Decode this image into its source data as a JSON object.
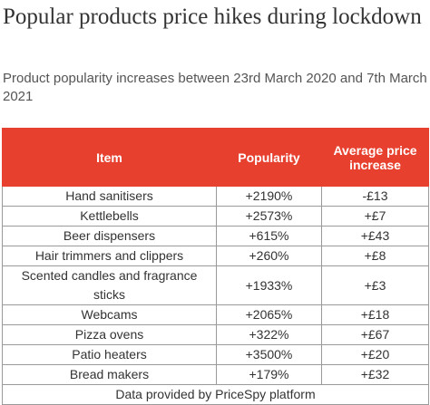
{
  "title": "Popular products price hikes during lockdown",
  "subtitle": "Product popularity increases between 23rd March 2020 and 7th March 2021",
  "colors": {
    "header_bg": "#e8402f",
    "header_text": "#ffffff",
    "border": "#9a9a9a"
  },
  "chart_data": {
    "type": "table",
    "columns": [
      "Item",
      "Popularity",
      "Average price increase"
    ],
    "rows": [
      [
        "Hand sanitisers",
        "+2190%",
        "-£13"
      ],
      [
        "Kettlebells",
        "+2573%",
        "+£7"
      ],
      [
        "Beer dispensers",
        "+615%",
        "+£43"
      ],
      [
        "Hair trimmers and clippers",
        "+260%",
        "+£8"
      ],
      [
        "Scented candles and fragrance sticks",
        "+1933%",
        "+£3"
      ],
      [
        "Webcams",
        "+2065%",
        "+£18"
      ],
      [
        "Pizza ovens",
        "+322%",
        "+£67"
      ],
      [
        "Patio heaters",
        "+3500%",
        "+£20"
      ],
      [
        "Bread makers",
        "+179%",
        "+£32"
      ]
    ],
    "source": "Data provided by PriceSpy platform"
  }
}
